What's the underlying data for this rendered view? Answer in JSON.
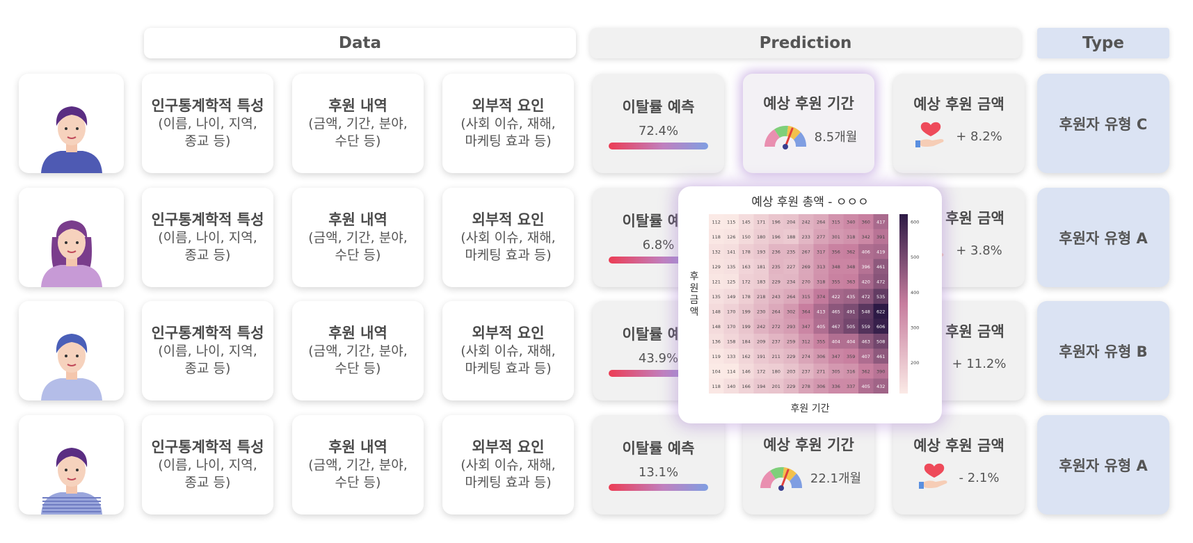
{
  "headers": {
    "data": "Data",
    "prediction": "Prediction",
    "type": "Type"
  },
  "rows": [
    {
      "avatar": "person-dark-hair-icon",
      "demo": {
        "title": "인구통계학적 특성",
        "sub1": "(이름, 나이, 지역,",
        "sub2": "종교 등)"
      },
      "history": {
        "title": "후원 내역",
        "sub1": "(금액, 기간, 분야,",
        "sub2": "수단 등)"
      },
      "external": {
        "title": "외부적 요인",
        "sub1": "(사회 이슈, 재해,",
        "sub2": "마케팅 효과 등)"
      },
      "churn": {
        "title": "이탈률 예측",
        "value": "72.4%"
      },
      "period": {
        "title": "예상 후원 기간",
        "value": "8.5개월"
      },
      "amount": {
        "title": "예상 후원 금액",
        "value": "+ 8.2%"
      },
      "type": "후원자 유형 C"
    },
    {
      "avatar": "person-long-hair-icon",
      "demo": {
        "title": "인구통계학적 특성",
        "sub1": "(이름, 나이, 지역,",
        "sub2": "종교 등)"
      },
      "history": {
        "title": "후원 내역",
        "sub1": "(금액, 기간, 분야,",
        "sub2": "수단 등)"
      },
      "external": {
        "title": "외부적 요인",
        "sub1": "(사회 이슈, 재해,",
        "sub2": "마케팅 효과 등)"
      },
      "churn": {
        "title": "이탈률 예측",
        "value": "6.8%"
      },
      "amount": {
        "title": "예상 후원 금액",
        "value": "+ 3.8%"
      },
      "type": "후원자 유형 A"
    },
    {
      "avatar": "person-blue-hair-icon",
      "demo": {
        "title": "인구통계학적 특성",
        "sub1": "(이름, 나이, 지역,",
        "sub2": "종교 등)"
      },
      "history": {
        "title": "후원 내역",
        "sub1": "(금액, 기간, 분야,",
        "sub2": "수단 등)"
      },
      "external": {
        "title": "외부적 요인",
        "sub1": "(사회 이슈, 재해,",
        "sub2": "마케팅 효과 등)"
      },
      "churn": {
        "title": "이탈률 예측",
        "value": "43.9%"
      },
      "amount": {
        "title": "예상 후원 금액",
        "value": "+ 11.2%"
      },
      "type": "후원자 유형 B"
    },
    {
      "avatar": "person-striped-shirt-icon",
      "demo": {
        "title": "인구통계학적 특성",
        "sub1": "(이름, 나이, 지역,",
        "sub2": "종교 등)"
      },
      "history": {
        "title": "후원 내역",
        "sub1": "(금액, 기간, 분야,",
        "sub2": "수단 등)"
      },
      "external": {
        "title": "외부적 요인",
        "sub1": "(사회 이슈, 재해,",
        "sub2": "마케팅 효과 등)"
      },
      "churn": {
        "title": "이탈률 예측",
        "value": "13.1%"
      },
      "period": {
        "title": "예상 후원 기간",
        "value": "22.1개월"
      },
      "amount": {
        "title": "예상 후원 금액",
        "value": "- 2.1%"
      },
      "type": "후원자 유형 A"
    }
  ],
  "popup": {
    "title": "예상 후원 총액 - ㅇㅇㅇ",
    "xlabel": "후원 기간",
    "ylabel": "후원 금액"
  },
  "chart_data": {
    "type": "heatmap",
    "title": "예상 후원 총액 - ㅇㅇㅇ",
    "xlabel": "후원 기간",
    "ylabel": "후원 금액",
    "values": [
      [
        112,
        115,
        145,
        171,
        196,
        204,
        242,
        264,
        315,
        340,
        360,
        417
      ],
      [
        118,
        126,
        150,
        180,
        196,
        188,
        233,
        277,
        301,
        318,
        342,
        391
      ],
      [
        132,
        141,
        178,
        193,
        236,
        235,
        267,
        317,
        356,
        362,
        406,
        419
      ],
      [
        129,
        135,
        163,
        181,
        235,
        227,
        269,
        313,
        348,
        348,
        396,
        461
      ],
      [
        121,
        125,
        172,
        183,
        229,
        234,
        270,
        318,
        355,
        363,
        420,
        472
      ],
      [
        135,
        149,
        178,
        218,
        243,
        264,
        315,
        374,
        422,
        435,
        472,
        535
      ],
      [
        148,
        170,
        199,
        230,
        264,
        302,
        364,
        413,
        465,
        491,
        548,
        622
      ],
      [
        148,
        170,
        199,
        242,
        272,
        293,
        347,
        405,
        467,
        505,
        559,
        606
      ],
      [
        136,
        158,
        184,
        209,
        237,
        259,
        312,
        355,
        404,
        404,
        463,
        508
      ],
      [
        119,
        133,
        162,
        191,
        211,
        229,
        274,
        306,
        347,
        359,
        407,
        461
      ],
      [
        104,
        114,
        146,
        172,
        180,
        203,
        237,
        271,
        305,
        316,
        362,
        390
      ],
      [
        118,
        140,
        166,
        194,
        201,
        229,
        278,
        306,
        336,
        337,
        405,
        432
      ]
    ],
    "colorbar_ticks": [
      200,
      300,
      400,
      500,
      600
    ],
    "colorbar_range": [
      112,
      622
    ],
    "colors": {
      "low": "#fbeae6",
      "mid": "#c77d9e",
      "high": "#2d1a45"
    }
  },
  "colors": {
    "type_bg": "#dbe3f3",
    "accent_red": "#ec3d55",
    "accent_blue": "#7f9ee2"
  }
}
